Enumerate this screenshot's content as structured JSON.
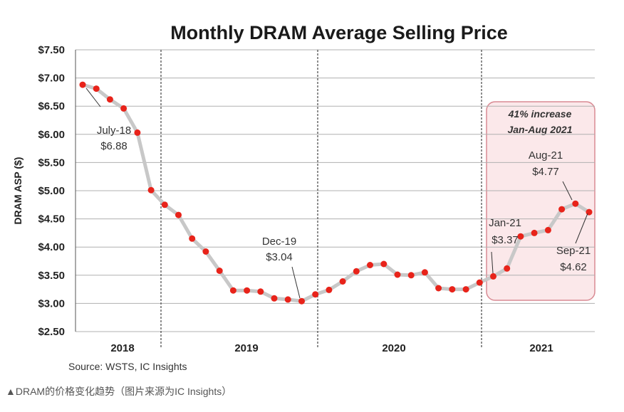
{
  "chart_data": {
    "type": "line",
    "title": "Monthly DRAM Average Selling Price",
    "ylabel": "DRAM ASP ($)",
    "xlabel": "",
    "ylim": [
      2.5,
      7.5
    ],
    "yticks": [
      2.5,
      3.0,
      3.5,
      4.0,
      4.5,
      5.0,
      5.5,
      6.0,
      6.5,
      7.0,
      7.5
    ],
    "ytick_labels": [
      "$2.50",
      "$3.00",
      "$3.50",
      "$4.00",
      "$4.50",
      "$5.00",
      "$5.50",
      "$6.00",
      "$6.50",
      "$7.00",
      "$7.50"
    ],
    "year_labels": [
      "2018",
      "2019",
      "2020",
      "2021"
    ],
    "grid": "horizontal",
    "series": [
      {
        "values": [
          6.88,
          6.81,
          6.62,
          6.46,
          6.03,
          5.01,
          4.75,
          4.57,
          4.15,
          3.92,
          3.58,
          3.23,
          3.23,
          3.21,
          3.09,
          3.07,
          3.04,
          3.16,
          3.24,
          3.39,
          3.57,
          3.68,
          3.7,
          3.51,
          3.5,
          3.55,
          3.27,
          3.25,
          3.25,
          3.37,
          3.48,
          3.62,
          4.19,
          4.25,
          4.3,
          4.67,
          4.77,
          4.62
        ]
      }
    ],
    "annotations": [
      {
        "text": "July-18",
        "value_text": "$6.88"
      },
      {
        "text": "Dec-19",
        "value_text": "$3.04"
      },
      {
        "text": "Jan-21",
        "value_text": "$3.37"
      },
      {
        "text": "Aug-21",
        "value_text": "$4.77"
      },
      {
        "text": "Sep-21",
        "value_text": "$4.62"
      }
    ],
    "highlight_box": {
      "line1": "41% increase",
      "line2": "Jan-Aug 2021"
    },
    "colors": {
      "line": "#c8c8c8",
      "marker": "#e8231a",
      "grid": "#b0b0b0",
      "box_fill": "#fbe8ea",
      "box_stroke": "#d98a93"
    }
  },
  "source": "Source:  WSTS, IC Insights",
  "caption": "▲DRAM的价格变化趋势（图片来源为IC Insights）"
}
